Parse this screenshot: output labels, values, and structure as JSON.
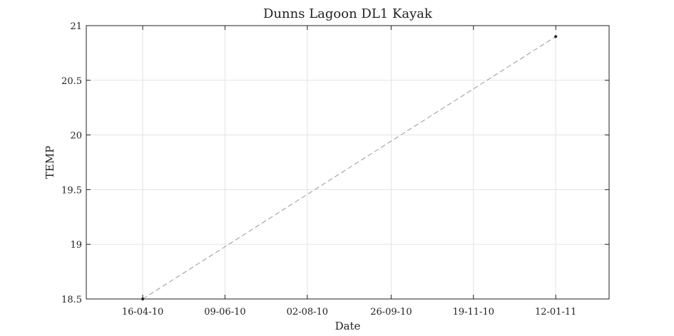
{
  "chart_data": {
    "type": "line",
    "title": "Dunns Lagoon DL1 Kayak",
    "xlabel": "Date",
    "ylabel": "TEMP",
    "x_tick_labels": [
      "16-04-10",
      "09-06-10",
      "02-08-10",
      "26-09-10",
      "19-11-10",
      "12-01-11"
    ],
    "x_tick_dates": [
      "2010-04-16",
      "2010-06-09",
      "2010-08-02",
      "2010-09-26",
      "2010-11-19",
      "2011-01-12"
    ],
    "xlim": [
      "2010-03-10",
      "2011-02-16"
    ],
    "y_ticks": [
      18.5,
      19,
      19.5,
      20,
      20.5,
      21
    ],
    "y_tick_labels": [
      "18.5",
      "19",
      "19.5",
      "20",
      "20.5",
      "21"
    ],
    "ylim": [
      18.5,
      21
    ],
    "grid": true,
    "series": [
      {
        "x": [
          "2010-04-16",
          "2011-01-12"
        ],
        "y": [
          18.5,
          20.9
        ],
        "color": "#999999",
        "line_style": "dashed",
        "marker": "dot",
        "marker_color": "#222222"
      }
    ]
  }
}
